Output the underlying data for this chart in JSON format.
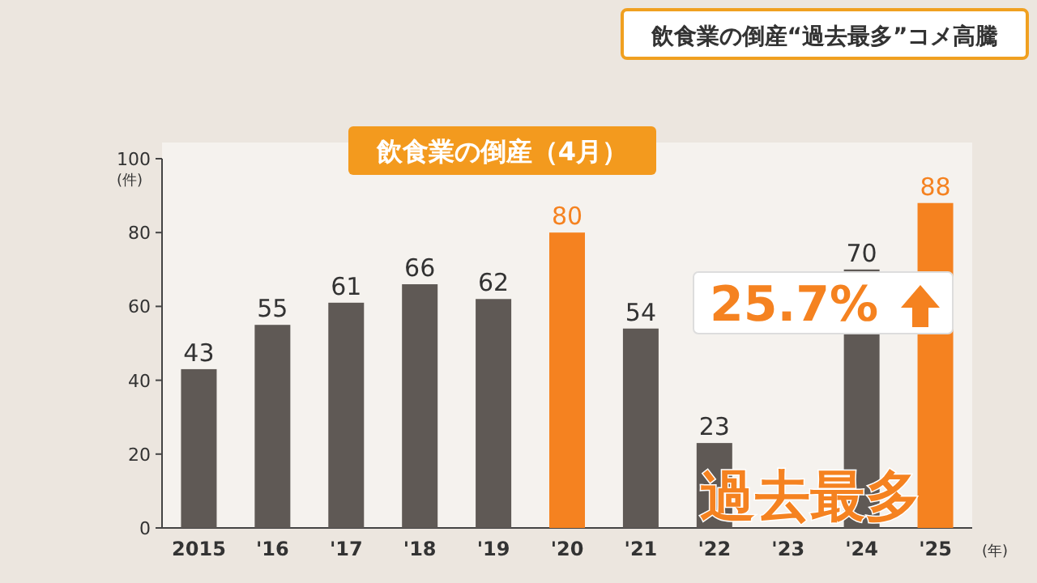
{
  "chart_data": {
    "type": "bar",
    "title": "飲食業の倒産（4月）",
    "subtitle": "飲食業の倒産“過去最多”コメ高騰",
    "categories": [
      "2015",
      "'16",
      "'17",
      "'18",
      "'19",
      "'20",
      "'21",
      "'22",
      "'23",
      "'24",
      "'25"
    ],
    "values": [
      43,
      55,
      61,
      66,
      62,
      80,
      54,
      23,
      null,
      70,
      88
    ],
    "colors": [
      "#5f5955",
      "#5f5955",
      "#5f5955",
      "#5f5955",
      "#5f5955",
      "#f58220",
      "#5f5955",
      "#5f5955",
      "#5f5955",
      "#5f5955",
      "#f58220"
    ],
    "ylabel": "(件)",
    "xlabel": "(年)",
    "ylim": [
      0,
      100
    ],
    "yticks": [
      0,
      20,
      40,
      60,
      80,
      100
    ],
    "data_labels": true,
    "grid": false,
    "annotations": [
      "25.7%",
      "過去最多"
    ]
  }
}
